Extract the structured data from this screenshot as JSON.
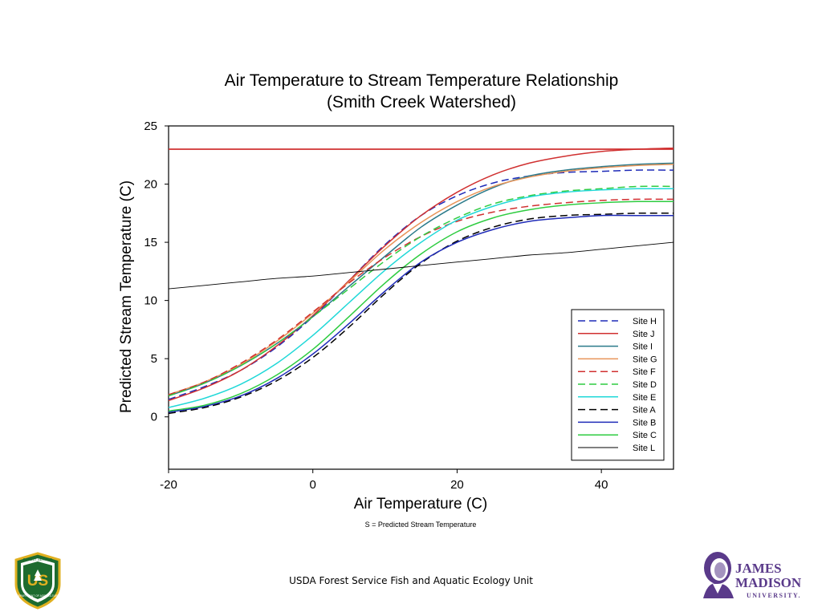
{
  "chart_data": {
    "type": "line",
    "title": "Air Temperature to Stream Temperature Relationship",
    "subtitle": "(Smith Creek Watershed)",
    "xlabel": "Air Temperature (C)",
    "ylabel": "Predicted Stream Temperature (C)",
    "note": "S = Predicted Stream Temperature",
    "xlim": [
      -20,
      50
    ],
    "ylim": [
      -4.5,
      25
    ],
    "xticks": [
      -20,
      0,
      20,
      40
    ],
    "yticks": [
      0,
      5,
      10,
      15,
      20,
      25
    ],
    "grid": false,
    "legend_position": "bottom-right",
    "x": [
      -20,
      -15,
      -10,
      -5,
      0,
      5,
      10,
      15,
      20,
      25,
      30,
      35,
      40,
      45,
      50
    ],
    "series": [
      {
        "name": "Site H",
        "color": "#1f2bb8",
        "dash": "dashed",
        "values": [
          1.5,
          2.6,
          4.0,
          6.0,
          8.6,
          11.7,
          14.8,
          17.3,
          19.0,
          20.1,
          20.7,
          21.0,
          21.1,
          21.2,
          21.2
        ]
      },
      {
        "name": "Site J",
        "color": "#d03030",
        "dash": "solid",
        "horizontal": 23.0,
        "values": [
          1.4,
          2.5,
          4.0,
          6.1,
          8.7,
          11.7,
          14.7,
          17.3,
          19.3,
          20.8,
          21.8,
          22.4,
          22.8,
          23.0,
          23.1
        ]
      },
      {
        "name": "Site I",
        "color": "#2a7a8a",
        "dash": "solid",
        "values": [
          1.8,
          2.9,
          4.4,
          6.3,
          8.6,
          11.2,
          13.8,
          16.3,
          18.2,
          19.7,
          20.7,
          21.2,
          21.5,
          21.7,
          21.8
        ]
      },
      {
        "name": "Site G",
        "color": "#e8955a",
        "dash": "solid",
        "values": [
          1.9,
          3.0,
          4.5,
          6.5,
          8.9,
          11.6,
          14.4,
          16.7,
          18.5,
          19.8,
          20.6,
          21.1,
          21.4,
          21.6,
          21.7
        ]
      },
      {
        "name": "Site F",
        "color": "#d03030",
        "dash": "dashed",
        "values": [
          1.9,
          3.0,
          4.6,
          6.6,
          9.0,
          11.5,
          13.7,
          15.5,
          16.8,
          17.6,
          18.1,
          18.4,
          18.6,
          18.7,
          18.7
        ]
      },
      {
        "name": "Site D",
        "color": "#2ecc40",
        "dash": "dashed",
        "values": [
          1.8,
          2.9,
          4.4,
          6.3,
          8.6,
          11.0,
          13.4,
          15.5,
          17.1,
          18.3,
          19.0,
          19.4,
          19.6,
          19.8,
          19.8
        ]
      },
      {
        "name": "Site E",
        "color": "#20d8d8",
        "dash": "solid",
        "values": [
          0.8,
          1.6,
          2.8,
          4.6,
          7.0,
          9.8,
          12.6,
          15.0,
          16.9,
          18.1,
          18.9,
          19.3,
          19.5,
          19.6,
          19.6
        ]
      },
      {
        "name": "Site A",
        "color": "#000000",
        "dash": "dashed",
        "values": [
          0.3,
          0.8,
          1.7,
          3.1,
          5.1,
          7.7,
          10.6,
          13.2,
          15.1,
          16.3,
          17.0,
          17.3,
          17.4,
          17.5,
          17.5
        ]
      },
      {
        "name": "Site B",
        "color": "#1f2bb8",
        "dash": "solid",
        "values": [
          0.4,
          0.9,
          1.8,
          3.3,
          5.4,
          8.0,
          10.8,
          13.3,
          15.0,
          16.1,
          16.8,
          17.1,
          17.3,
          17.3,
          17.3
        ]
      },
      {
        "name": "Site C",
        "color": "#2ecc40",
        "dash": "solid",
        "values": [
          0.5,
          1.0,
          2.0,
          3.6,
          5.8,
          8.6,
          11.5,
          14.0,
          15.9,
          17.1,
          17.8,
          18.2,
          18.4,
          18.5,
          18.5
        ]
      },
      {
        "name": "Site L",
        "color": "#000000",
        "dash": "solid",
        "thin": true,
        "values": [
          11.0,
          11.3,
          11.6,
          11.9,
          12.1,
          12.4,
          12.7,
          13.0,
          13.3,
          13.6,
          13.9,
          14.1,
          14.4,
          14.7,
          15.0
        ]
      }
    ]
  },
  "footer": {
    "text": "USDA Forest Service Fish and Aquatic Ecology Unit"
  },
  "logos": {
    "usfs_top": "FOREST SERVICE",
    "usfs_letters": "US",
    "usfs_bottom": "DEPARTMENT OF AGRICULTURE",
    "jmu_line1": "JAMES",
    "jmu_line2": "MADISON",
    "jmu_line3": "UNIVERSITY."
  }
}
